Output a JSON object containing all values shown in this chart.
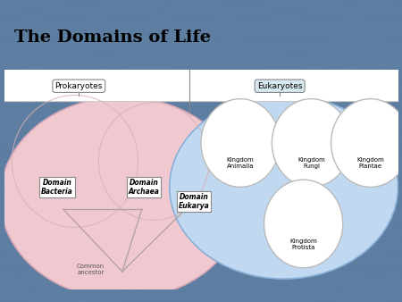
{
  "title": "The Domains of Life",
  "title_fontsize": 14,
  "title_bg": "#c8e8f5",
  "title_border": "#5599bb",
  "background_ocean": "#5d7ea0",
  "diagram_bg": "#ffffff",
  "diagram_border": "#3344aa",
  "prokaryotes_label": "Prokaryotes",
  "eukaryotes_label": "Eukaryotes",
  "label_bg": "#e8e8e8",
  "label_border": "#888888",
  "label_text_bg": "#d8e8f0",
  "pink_color": "#f0c8d0",
  "pink_edge": "#d8a8b8",
  "blue_color": "#c0d8f0",
  "blue_edge": "#88b0d8",
  "white_circle": "#ffffff",
  "white_circle_edge": "#bbbbbb",
  "domain_bacteria_label": "Domain\nBacteria",
  "domain_archaea_label": "Domain\nArchaea",
  "domain_eukarya_label": "Domain\nEukarya",
  "common_ancestor_label": "Common\nancestor",
  "kingdom_animalia": "Kingdom\nAnimalia",
  "kingdom_fungi": "Kingdom\nFungi",
  "kingdom_plantae": "Kingdom\nPlantae",
  "kingdom_protista": "Kingdom\nProtista",
  "text_color": "#000000",
  "line_color": "#b0a0a0",
  "ocean_wave_color": "#6688aa",
  "diagram_top_strip": "#f0f0f0",
  "divider_line": "#888888"
}
